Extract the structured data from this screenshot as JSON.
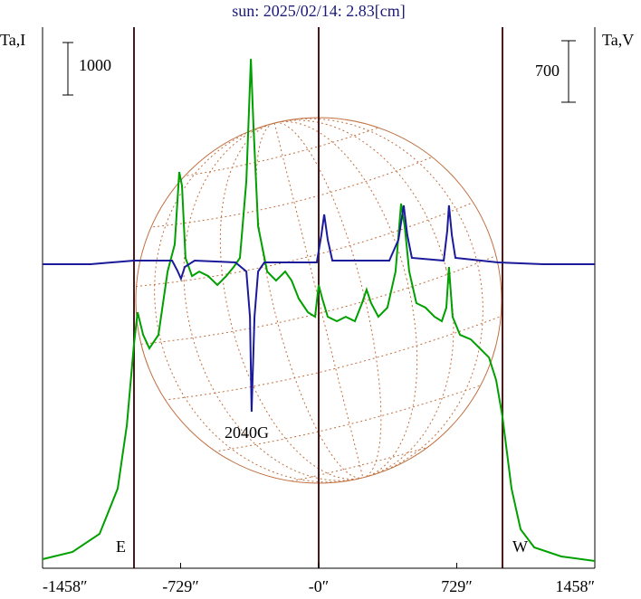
{
  "chart_data": {
    "type": "line",
    "title": "sun: 2025/02/14: 2.83[cm]",
    "ylabel": "Ta,I",
    "y2label": "Ta,V",
    "y_scale_bar": 1000,
    "y2_scale_bar": 700,
    "annotations": [
      "E",
      "W",
      "2040G"
    ],
    "xlim": [
      -1458,
      1458
    ],
    "xticks": [
      {
        "value": -1458,
        "label": "-1458″"
      },
      {
        "value": -729,
        "label": "-729″"
      },
      {
        "value": 0,
        "label": "-0″"
      },
      {
        "value": 729,
        "label": "729″"
      },
      {
        "value": 1458,
        "label": "1458″"
      }
    ],
    "ylim": [
      0,
      10140
    ],
    "y2lim": [
      -3460,
      2595
    ],
    "series": [
      {
        "color": "#00a000",
        "axis": "y",
        "x": [
          -1458,
          -1300,
          -1157,
          -1061,
          -1013,
          -975,
          -956,
          -927,
          -894,
          -846,
          -798,
          -760,
          -736,
          -722,
          -703,
          -669,
          -631,
          -583,
          -535,
          -488,
          -449,
          -416,
          -382,
          -358,
          -344,
          -320,
          -272,
          -225,
          -177,
          -143,
          -105,
          -57,
          -19,
          0,
          19,
          48,
          96,
          143,
          191,
          229,
          253,
          277,
          315,
          363,
          406,
          435,
          454,
          478,
          516,
          564,
          612,
          650,
          674,
          688,
          707,
          746,
          803,
          851,
          899,
          937,
          970,
          1018,
          1066,
          1138,
          1281,
          1458
        ],
        "values": [
          172,
          310,
          655,
          1517,
          2724,
          4276,
          4879,
          4448,
          4190,
          4448,
          5655,
          6172,
          7552,
          7293,
          5914,
          5569,
          5655,
          5569,
          5397,
          5569,
          5741,
          5914,
          7379,
          9707,
          8414,
          6517,
          5655,
          5483,
          5655,
          5483,
          5138,
          4879,
          4793,
          5397,
          5138,
          4793,
          4707,
          4793,
          4707,
          5052,
          5310,
          5052,
          4793,
          4966,
          5655,
          6948,
          6517,
          5655,
          5052,
          4966,
          4793,
          4707,
          4966,
          5741,
          4793,
          4448,
          4362,
          4190,
          4017,
          3586,
          2897,
          1517,
          741,
          397,
          224,
          138
        ]
      },
      {
        "color": "#1a1a9a",
        "axis": "y2",
        "x": [
          -1458,
          -1205,
          -975,
          -774,
          -746,
          -727,
          -707,
          -655,
          -440,
          -382,
          -363,
          -354,
          -339,
          -320,
          -287,
          -10,
          14,
          29,
          48,
          72,
          373,
          421,
          449,
          468,
          492,
          660,
          679,
          688,
          703,
          722,
          946,
          1185,
          1458
        ],
        "values": [
          0,
          0,
          41,
          41,
          -72,
          -165,
          -31,
          41,
          21,
          -82,
          -597,
          -1679,
          -597,
          -82,
          21,
          21,
          330,
          566,
          278,
          41,
          41,
          278,
          669,
          330,
          72,
          41,
          381,
          669,
          330,
          72,
          21,
          0,
          0
        ]
      }
    ]
  }
}
